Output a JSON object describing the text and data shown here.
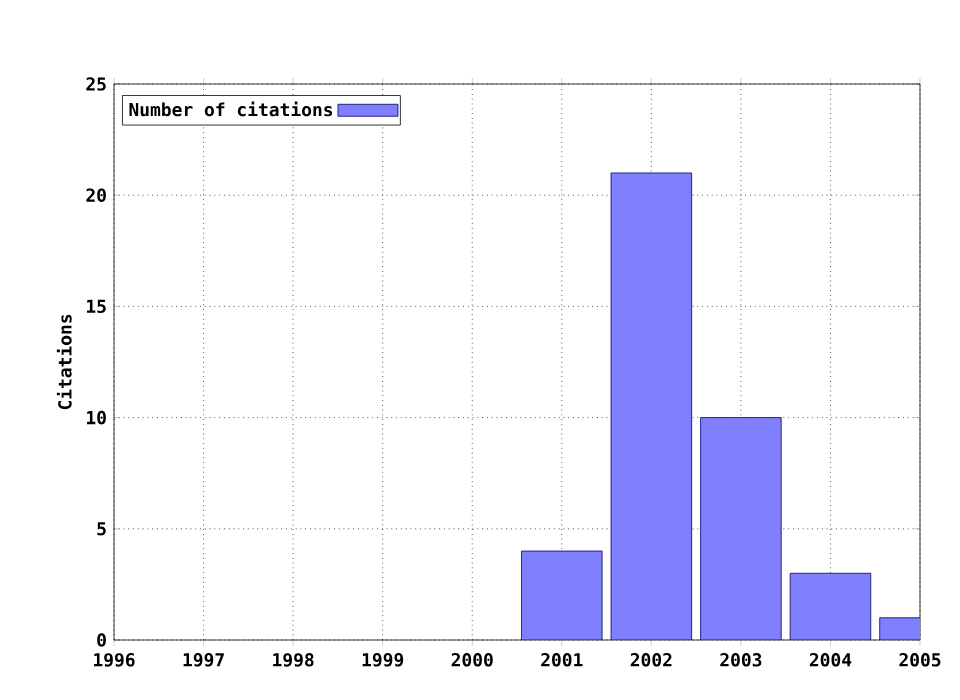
{
  "chart_data": {
    "type": "bar",
    "ylabel": "Citations",
    "x": [
      2001,
      2002,
      2003,
      2004,
      2005
    ],
    "series": [
      {
        "name": "Number of citations",
        "color": "#8080ff",
        "values": [
          4,
          21,
          10,
          3,
          1
        ]
      }
    ],
    "xlim": [
      1996,
      2005
    ],
    "xticks": [
      1996,
      1997,
      1998,
      1999,
      2000,
      2001,
      2002,
      2003,
      2004,
      2005
    ],
    "ylim": [
      0,
      25
    ],
    "yticks": [
      0,
      5,
      10,
      15,
      20,
      25
    ],
    "grid": true,
    "legend": "top left"
  }
}
